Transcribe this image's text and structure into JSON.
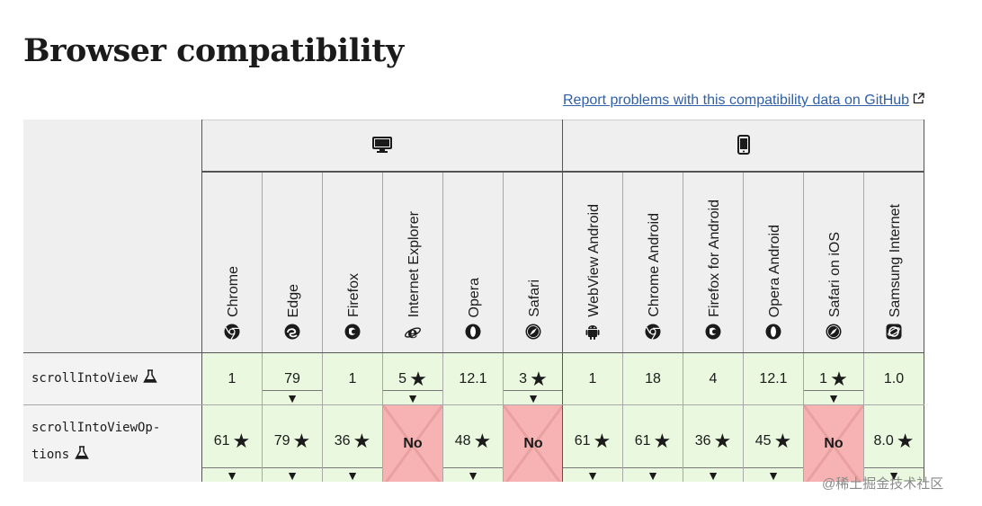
{
  "page": {
    "heading": "Browser compatibility",
    "report_link": "Report problems with this compatibility data on GitHub"
  },
  "platforms": [
    {
      "name": "desktop",
      "icon": "desktop-icon"
    },
    {
      "name": "mobile",
      "icon": "mobile-icon"
    }
  ],
  "browsers": [
    {
      "label": "Chrome",
      "icon": "chrome-icon"
    },
    {
      "label": "Edge",
      "icon": "edge-icon"
    },
    {
      "label": "Firefox",
      "icon": "firefox-icon"
    },
    {
      "label": "Internet Explorer",
      "icon": "ie-icon"
    },
    {
      "label": "Opera",
      "icon": "opera-icon"
    },
    {
      "label": "Safari",
      "icon": "safari-icon"
    },
    {
      "label": "WebView Android",
      "icon": "android-icon"
    },
    {
      "label": "Chrome Android",
      "icon": "chrome-icon"
    },
    {
      "label": "Firefox for Android",
      "icon": "firefox-icon"
    },
    {
      "label": "Opera Android",
      "icon": "opera-icon"
    },
    {
      "label": "Safari on iOS",
      "icon": "safari-icon"
    },
    {
      "label": "Samsung Internet",
      "icon": "samsung-icon"
    }
  ],
  "rows": [
    {
      "feature": "scrollIntoView",
      "cells": [
        {
          "value": "1",
          "star": false,
          "notes": false,
          "no": false
        },
        {
          "value": "79",
          "star": false,
          "notes": true,
          "no": false
        },
        {
          "value": "1",
          "star": false,
          "notes": false,
          "no": false
        },
        {
          "value": "5",
          "star": true,
          "notes": true,
          "no": false
        },
        {
          "value": "12.1",
          "star": false,
          "notes": false,
          "no": false
        },
        {
          "value": "3",
          "star": true,
          "notes": true,
          "no": false
        },
        {
          "value": "1",
          "star": false,
          "notes": false,
          "no": false
        },
        {
          "value": "18",
          "star": false,
          "notes": false,
          "no": false
        },
        {
          "value": "4",
          "star": false,
          "notes": false,
          "no": false
        },
        {
          "value": "12.1",
          "star": false,
          "notes": false,
          "no": false
        },
        {
          "value": "1",
          "star": true,
          "notes": true,
          "no": false
        },
        {
          "value": "1.0",
          "star": false,
          "notes": false,
          "no": false
        }
      ]
    },
    {
      "feature": "scrollIntoViewOp-",
      "feature_line2": "tions",
      "cells": [
        {
          "value": "61",
          "star": true,
          "notes": true,
          "no": false
        },
        {
          "value": "79",
          "star": true,
          "notes": true,
          "no": false
        },
        {
          "value": "36",
          "star": true,
          "notes": true,
          "no": false
        },
        {
          "value": "No",
          "star": false,
          "notes": false,
          "no": true
        },
        {
          "value": "48",
          "star": true,
          "notes": true,
          "no": false
        },
        {
          "value": "No",
          "star": false,
          "notes": false,
          "no": true
        },
        {
          "value": "61",
          "star": true,
          "notes": true,
          "no": false
        },
        {
          "value": "61",
          "star": true,
          "notes": true,
          "no": false
        },
        {
          "value": "36",
          "star": true,
          "notes": true,
          "no": false
        },
        {
          "value": "45",
          "star": true,
          "notes": true,
          "no": false
        },
        {
          "value": "No",
          "star": false,
          "notes": false,
          "no": true
        },
        {
          "value": "8.0",
          "star": true,
          "notes": true,
          "no": false
        }
      ]
    }
  ],
  "watermark": "@稀土掘金技术社区",
  "colors": {
    "yes": "#e9f8de",
    "no": "#f7b3b3",
    "header": "#efefef",
    "link": "#3060a8"
  }
}
